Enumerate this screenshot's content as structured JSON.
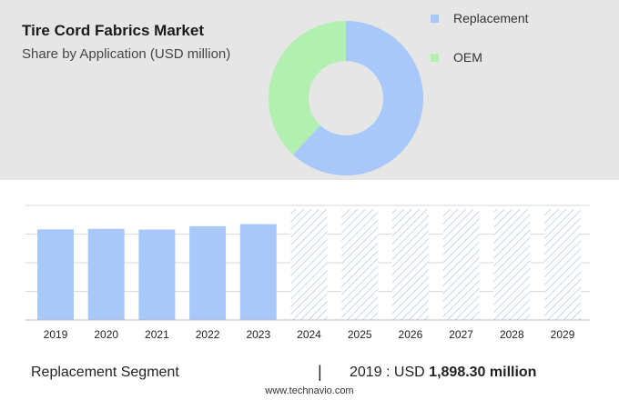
{
  "header": {
    "title": "Tire Cord Fabrics Market",
    "subtitle": "Share by Application (USD million)"
  },
  "colors": {
    "replacement": "#a8c8fa",
    "oem": "#b2f0b2",
    "panel": "#e6e6e6",
    "hatch": "#c5d6f2"
  },
  "chart_data": [
    {
      "type": "pie",
      "title": "Share by Application (USD million)",
      "legend_position": "right",
      "donut": true,
      "slices": [
        {
          "name": "Replacement",
          "share": 0.62
        },
        {
          "name": "OEM",
          "share": 0.38
        }
      ]
    },
    {
      "type": "bar",
      "categories": [
        "2019",
        "2020",
        "2021",
        "2022",
        "2023",
        "2024",
        "2025",
        "2026",
        "2027",
        "2028",
        "2029"
      ],
      "values": [
        1898.3,
        1910,
        1895,
        1965,
        2010,
        null,
        null,
        null,
        null,
        null,
        null
      ],
      "forecast_categories": [
        "2024",
        "2025",
        "2026",
        "2027",
        "2028",
        "2029"
      ],
      "ylim": [
        0,
        2400
      ],
      "grid": true,
      "yaxis_labels_shown": false
    }
  ],
  "footer": {
    "segment_label": "Replacement Segment",
    "separator": "|",
    "value_prefix": "2019 : USD",
    "value": "1,898.30 million",
    "source": "www.technavio.com"
  }
}
